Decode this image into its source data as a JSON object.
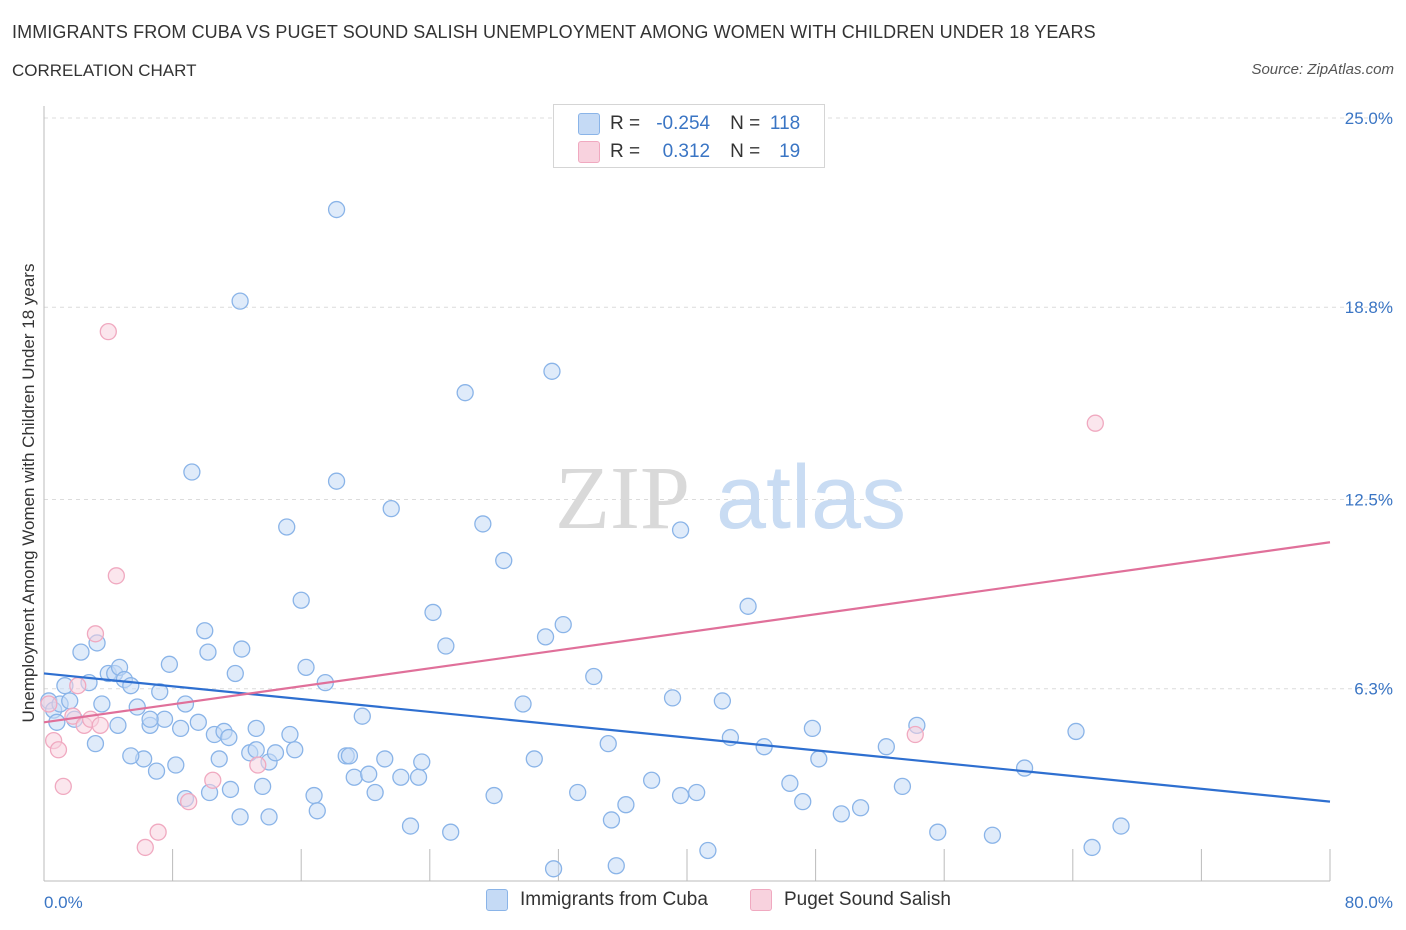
{
  "title": "IMMIGRANTS FROM CUBA VS PUGET SOUND SALISH UNEMPLOYMENT AMONG WOMEN WITH CHILDREN UNDER 18 YEARS",
  "subtitle": "CORRELATION CHART",
  "source": "Source: ZipAtlas.com",
  "watermark": {
    "zip": "ZIP",
    "atlas": "atlas"
  },
  "colors": {
    "blue": "#8ab4e8",
    "blue_fill": "#c5daf5",
    "blue_line": "#2e6fd0",
    "pink": "#f0a9c0",
    "pink_fill": "#f8d2de",
    "pink_line": "#e0709a",
    "tick_text": "#3a75c4"
  },
  "legend_top": {
    "rows": [
      {
        "r_label": "R =",
        "r_value": "-0.254",
        "n_label": "N =",
        "n_value": "118"
      },
      {
        "r_label": "R =",
        "r_value": "0.312",
        "n_label": "N =",
        "n_value": "19"
      }
    ]
  },
  "legend_bottom": {
    "series1": "Immigrants from Cuba",
    "series2": "Puget Sound Salish"
  },
  "chart_data": {
    "type": "scatter",
    "ylabel": "Unemployment Among Women with Children Under 18 years",
    "xlabel": "",
    "xlim": [
      0,
      80
    ],
    "ylim": [
      0,
      25
    ],
    "x_tick_labels": [
      "0.0%",
      "80.0%"
    ],
    "y_tick_labels": [
      "6.3%",
      "12.5%",
      "18.8%",
      "25.0%"
    ],
    "y_ticks": [
      6.3,
      12.5,
      18.8,
      25.0
    ],
    "grid": "horizontal dashed",
    "series": [
      {
        "name": "Immigrants from Cuba",
        "trend": {
          "x": [
            0,
            80
          ],
          "y": [
            6.8,
            2.6
          ]
        },
        "points": [
          [
            0.3,
            5.9
          ],
          [
            0.6,
            5.6
          ],
          [
            0.8,
            5.2
          ],
          [
            1.0,
            5.8
          ],
          [
            1.3,
            6.4
          ],
          [
            1.6,
            5.9
          ],
          [
            1.9,
            5.3
          ],
          [
            2.3,
            7.5
          ],
          [
            2.8,
            6.5
          ],
          [
            3.3,
            7.8
          ],
          [
            3.6,
            5.8
          ],
          [
            4.0,
            6.8
          ],
          [
            4.4,
            6.8
          ],
          [
            4.7,
            7.0
          ],
          [
            5.0,
            6.6
          ],
          [
            5.4,
            6.4
          ],
          [
            4.6,
            5.1
          ],
          [
            5.8,
            5.7
          ],
          [
            6.2,
            4.0
          ],
          [
            6.6,
            5.1
          ],
          [
            7.0,
            3.6
          ],
          [
            7.2,
            6.2
          ],
          [
            7.5,
            5.3
          ],
          [
            7.8,
            7.1
          ],
          [
            8.2,
            3.8
          ],
          [
            8.5,
            5.0
          ],
          [
            8.8,
            5.8
          ],
          [
            9.2,
            13.4
          ],
          [
            9.6,
            5.2
          ],
          [
            10.0,
            8.2
          ],
          [
            10.2,
            7.5
          ],
          [
            10.6,
            4.8
          ],
          [
            10.9,
            4.0
          ],
          [
            11.2,
            4.9
          ],
          [
            11.6,
            3.0
          ],
          [
            11.9,
            6.8
          ],
          [
            12.3,
            7.6
          ],
          [
            12.8,
            4.2
          ],
          [
            13.2,
            4.3
          ],
          [
            13.6,
            3.1
          ],
          [
            14.0,
            3.9
          ],
          [
            14.4,
            4.2
          ],
          [
            15.1,
            11.6
          ],
          [
            15.6,
            4.3
          ],
          [
            16.0,
            9.2
          ],
          [
            16.3,
            7.0
          ],
          [
            16.8,
            2.8
          ],
          [
            17.5,
            6.5
          ],
          [
            18.2,
            13.1
          ],
          [
            18.8,
            4.1
          ],
          [
            19.3,
            3.4
          ],
          [
            19.8,
            5.4
          ],
          [
            20.2,
            3.5
          ],
          [
            20.6,
            2.9
          ],
          [
            21.2,
            4.0
          ],
          [
            22.2,
            3.4
          ],
          [
            22.8,
            1.8
          ],
          [
            23.3,
            3.4
          ],
          [
            23.5,
            3.9
          ],
          [
            24.2,
            8.8
          ],
          [
            25.0,
            7.7
          ],
          [
            26.2,
            16.0
          ],
          [
            27.3,
            11.7
          ],
          [
            28.0,
            2.8
          ],
          [
            28.6,
            10.5
          ],
          [
            29.8,
            5.8
          ],
          [
            30.5,
            4.0
          ],
          [
            31.2,
            8.0
          ],
          [
            31.7,
            0.4
          ],
          [
            32.3,
            8.4
          ],
          [
            33.2,
            2.9
          ],
          [
            34.2,
            6.7
          ],
          [
            35.1,
            4.5
          ],
          [
            35.6,
            0.5
          ],
          [
            36.2,
            2.5
          ],
          [
            37.8,
            3.3
          ],
          [
            39.1,
            6.0
          ],
          [
            39.6,
            2.8
          ],
          [
            40.6,
            2.9
          ],
          [
            42.2,
            5.9
          ],
          [
            42.7,
            4.7
          ],
          [
            43.8,
            9.0
          ],
          [
            44.8,
            4.4
          ],
          [
            46.4,
            3.2
          ],
          [
            47.2,
            2.6
          ],
          [
            47.8,
            5.0
          ],
          [
            48.2,
            4.0
          ],
          [
            49.6,
            2.2
          ],
          [
            50.8,
            2.4
          ],
          [
            52.4,
            4.4
          ],
          [
            53.4,
            3.1
          ],
          [
            54.3,
            5.1
          ],
          [
            55.6,
            1.6
          ],
          [
            59.0,
            1.5
          ],
          [
            61.0,
            3.7
          ],
          [
            64.2,
            4.9
          ],
          [
            65.2,
            1.1
          ],
          [
            67.0,
            1.8
          ],
          [
            18.2,
            22.0
          ],
          [
            12.2,
            19.0
          ],
          [
            31.6,
            16.7
          ],
          [
            21.6,
            12.2
          ],
          [
            39.6,
            11.5
          ],
          [
            35.3,
            2.0
          ],
          [
            25.3,
            1.6
          ],
          [
            41.3,
            1.0
          ],
          [
            14.0,
            2.1
          ],
          [
            10.3,
            2.9
          ],
          [
            15.3,
            4.8
          ],
          [
            13.2,
            5.0
          ],
          [
            11.5,
            4.7
          ],
          [
            19.0,
            4.1
          ],
          [
            3.2,
            4.5
          ],
          [
            5.4,
            4.1
          ],
          [
            6.6,
            5.3
          ],
          [
            8.8,
            2.7
          ],
          [
            12.2,
            2.1
          ],
          [
            17.0,
            2.3
          ]
        ]
      },
      {
        "name": "Puget Sound Salish",
        "trend": {
          "x": [
            0,
            80
          ],
          "y": [
            5.2,
            11.1
          ]
        },
        "points": [
          [
            0.3,
            5.8
          ],
          [
            0.6,
            4.6
          ],
          [
            0.9,
            4.3
          ],
          [
            1.2,
            3.1
          ],
          [
            1.8,
            5.4
          ],
          [
            2.1,
            6.4
          ],
          [
            2.5,
            5.1
          ],
          [
            2.9,
            5.3
          ],
          [
            3.2,
            8.1
          ],
          [
            3.5,
            5.1
          ],
          [
            4.0,
            18.0
          ],
          [
            4.5,
            10.0
          ],
          [
            6.3,
            1.1
          ],
          [
            7.1,
            1.6
          ],
          [
            9.0,
            2.6
          ],
          [
            10.5,
            3.3
          ],
          [
            13.3,
            3.8
          ],
          [
            54.2,
            4.8
          ],
          [
            65.4,
            15.0
          ]
        ]
      }
    ]
  }
}
